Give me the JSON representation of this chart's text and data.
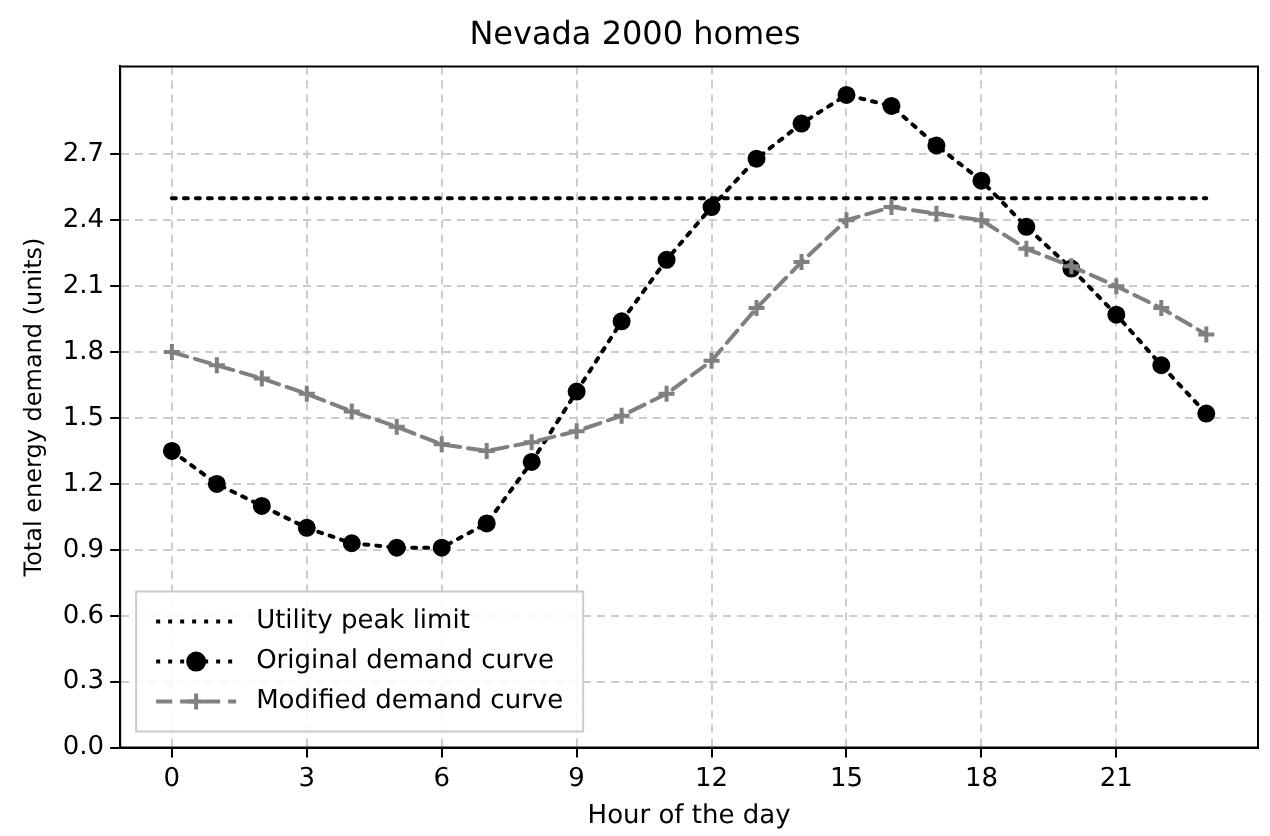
{
  "chart_data": {
    "type": "line",
    "title": "Nevada 2000 homes",
    "xlabel": "Hour of the day",
    "ylabel": "Total energy demand (units)",
    "xlim": [
      -1.15,
      24.15
    ],
    "xticks": [
      0,
      3,
      6,
      9,
      12,
      15,
      18,
      21
    ],
    "ylim": [
      0,
      3.1
    ],
    "yticks": [
      {
        "value": 0,
        "label": "0.0"
      },
      0.3,
      0.6,
      0.9,
      1.2,
      1.5,
      1.8,
      2.1,
      2.4,
      2.7
    ],
    "grid": true,
    "legend": "bottom left",
    "series": [
      {
        "name": "Utility peak limit",
        "color": "#000000",
        "line_style": "dotted",
        "marker": "none",
        "x": [
          0,
          23
        ],
        "values": [
          2.5,
          2.5
        ]
      },
      {
        "name": "Original demand curve",
        "color": "#000000",
        "line_style": "dotted",
        "marker": "circle",
        "x": [
          0,
          1,
          2,
          3,
          4,
          5,
          6,
          7,
          8,
          9,
          10,
          11,
          12,
          13,
          14,
          15,
          16,
          17,
          18,
          19,
          20,
          21,
          22,
          23
        ],
        "values": [
          1.35,
          1.2,
          1.1,
          1.0,
          0.93,
          0.91,
          0.91,
          1.02,
          1.3,
          1.62,
          1.94,
          2.22,
          2.46,
          2.68,
          2.84,
          2.97,
          2.92,
          2.74,
          2.58,
          2.37,
          2.18,
          1.97,
          1.74,
          1.52
        ]
      },
      {
        "name": "Modified demand curve",
        "color": "#808080",
        "line_style": "dashed",
        "marker": "cross",
        "x": [
          0,
          1,
          2,
          3,
          4,
          5,
          6,
          7,
          8,
          9,
          10,
          11,
          12,
          13,
          14,
          15,
          16,
          17,
          18,
          19,
          20,
          21,
          22,
          23
        ],
        "values": [
          1.8,
          1.74,
          1.68,
          1.61,
          1.53,
          1.46,
          1.38,
          1.35,
          1.39,
          1.44,
          1.51,
          1.61,
          1.76,
          2.0,
          2.21,
          2.4,
          2.46,
          2.43,
          2.4,
          2.27,
          2.19,
          2.1,
          2.0,
          1.88
        ]
      }
    ]
  }
}
